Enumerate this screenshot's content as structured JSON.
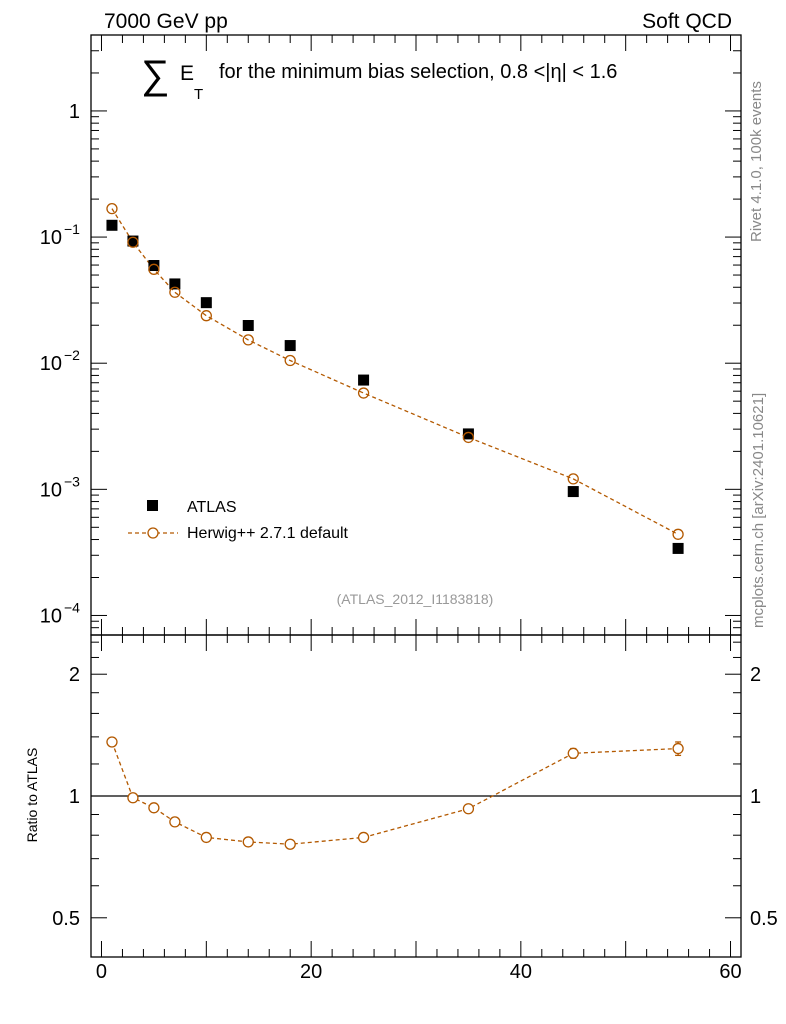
{
  "header": {
    "left": "7000 GeV pp",
    "right": "Soft QCD",
    "title_symbol": "∑",
    "title_var": "E",
    "title_sub": "T",
    "title_text": "for the minimum bias selection, 0.8 <|η| < 1.6",
    "side_top": "Rivet 4.1.0,  100k events",
    "side_bottom": "mcplots.cern.ch [arXiv:2401.10621]",
    "analysis": "(ATLAS_2012_I1183818)"
  },
  "colors": {
    "data": "#000000",
    "mc": "#b35900",
    "axis": "#000000",
    "watermark": "#888888"
  },
  "chart_data": [
    {
      "type": "scatter",
      "panel": "main",
      "yscale": "log",
      "xlim": [
        -1,
        61
      ],
      "ylim": [
        7e-05,
        4
      ],
      "yticks": [
        {
          "value": 1,
          "label": "1",
          "exp": ""
        },
        {
          "value": 0.1,
          "label": "10",
          "exp": "−1"
        },
        {
          "value": 0.01,
          "label": "10",
          "exp": "−2"
        },
        {
          "value": 0.001,
          "label": "10",
          "exp": "−3"
        },
        {
          "value": 0.0001,
          "label": "10",
          "exp": "−4"
        }
      ],
      "legend_position": "bottom-left",
      "series": [
        {
          "name": "ATLAS",
          "marker": "filled-square",
          "x": [
            1,
            3,
            5,
            7,
            10,
            14,
            18,
            25,
            35,
            45,
            55
          ],
          "y": [
            0.124,
            0.093,
            0.0595,
            0.0425,
            0.0302,
            0.0199,
            0.0138,
            0.00735,
            0.00275,
            0.00096,
            0.00034
          ]
        },
        {
          "name": "Herwig++ 2.7.1 default",
          "marker": "open-circle",
          "line": "dashed",
          "x": [
            1,
            3,
            5,
            7,
            10,
            14,
            18,
            25,
            35,
            45,
            55
          ],
          "y": [
            0.168,
            0.091,
            0.0555,
            0.0365,
            0.0238,
            0.0153,
            0.0105,
            0.0058,
            0.00258,
            0.00121,
            0.00044
          ]
        }
      ]
    },
    {
      "type": "scatter",
      "panel": "ratio",
      "ylabel": "Ratio to ATLAS",
      "yscale": "log",
      "xlim": [
        -1,
        61
      ],
      "ylim": [
        0.4,
        2.5
      ],
      "xticks": [
        0,
        20,
        40,
        60
      ],
      "yticks": [
        {
          "value": 2,
          "label": "2"
        },
        {
          "value": 1,
          "label": "1"
        },
        {
          "value": 0.5,
          "label": "0.5"
        }
      ],
      "reference": 1,
      "series": [
        {
          "name": "Herwig++ 2.7.1 default",
          "marker": "open-circle",
          "line": "dashed",
          "x": [
            1,
            3,
            5,
            7,
            10,
            14,
            18,
            25,
            35,
            45,
            55
          ],
          "y": [
            1.36,
            0.99,
            0.935,
            0.863,
            0.79,
            0.77,
            0.76,
            0.79,
            0.93,
            1.275,
            1.31
          ],
          "yerr": [
            0.01,
            0.005,
            0.005,
            0.005,
            0.005,
            0.005,
            0.005,
            0.005,
            0.008,
            0.035,
            0.05
          ]
        }
      ]
    }
  ]
}
